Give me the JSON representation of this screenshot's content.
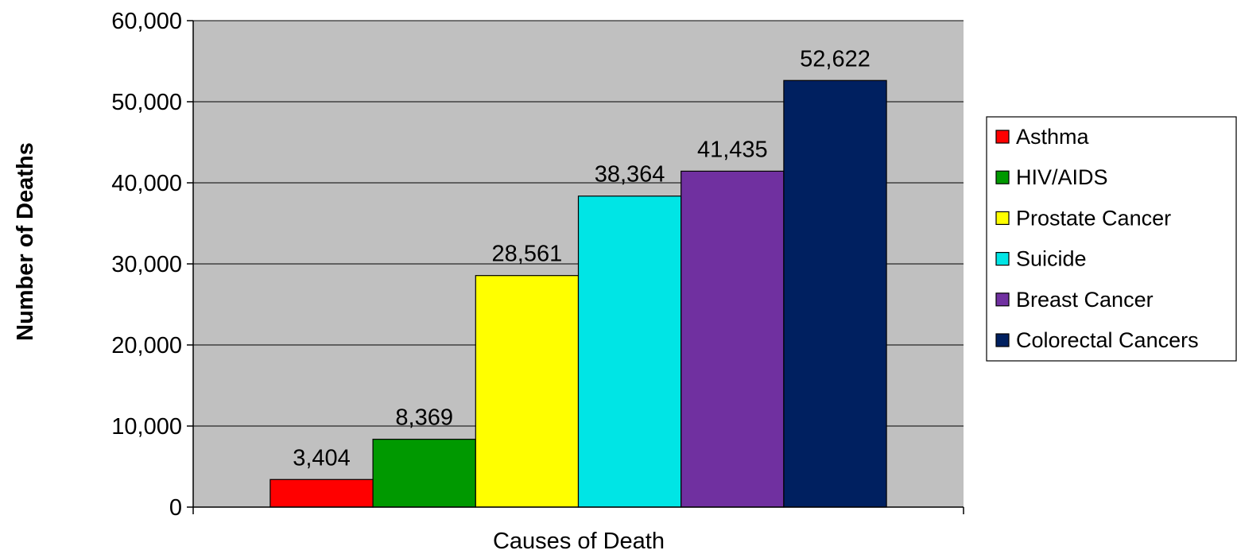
{
  "chart_data": {
    "type": "bar",
    "xlabel": "Causes of Death",
    "ylabel": "Number of Deaths",
    "ylim": [
      0,
      60000
    ],
    "yticks": [
      0,
      10000,
      20000,
      30000,
      40000,
      50000,
      60000
    ],
    "ytick_labels": [
      "0",
      "10,000",
      "20,000",
      "30,000",
      "40,000",
      "50,000",
      "60,000"
    ],
    "grid": true,
    "legend_position": "right",
    "plot_background": "#c0c0c0",
    "series": [
      {
        "name": "Asthma",
        "value": 3404,
        "label": "3,404",
        "color": "#ff0000"
      },
      {
        "name": "HIV/AIDS",
        "value": 8369,
        "label": "8,369",
        "color": "#009900"
      },
      {
        "name": "Prostate Cancer",
        "value": 28561,
        "label": "28,561",
        "color": "#ffff00"
      },
      {
        "name": "Suicide",
        "value": 38364,
        "label": "38,364",
        "color": "#00e5e5"
      },
      {
        "name": "Breast Cancer",
        "value": 41435,
        "label": "41,435",
        "color": "#7030a0"
      },
      {
        "name": "Colorectal Cancers",
        "value": 52622,
        "label": "52,622",
        "color": "#002060"
      }
    ]
  }
}
